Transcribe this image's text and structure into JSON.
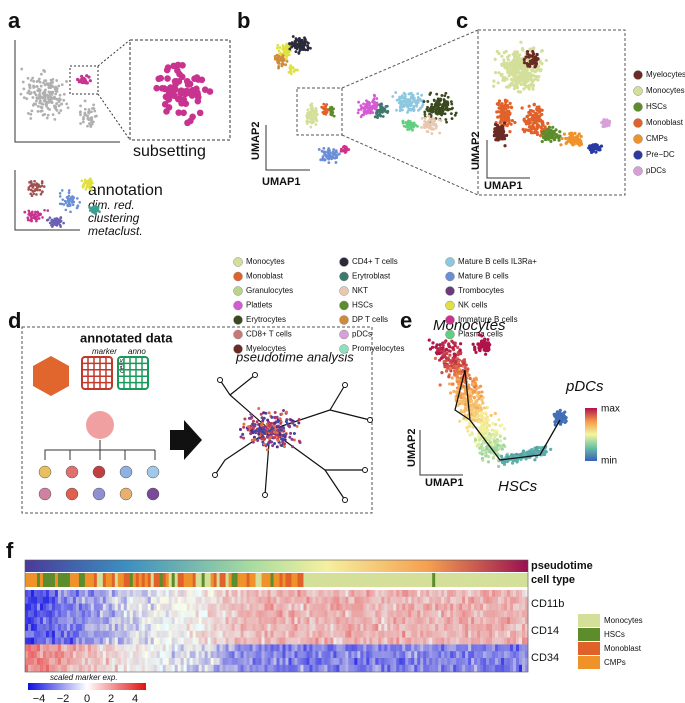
{
  "panel_labels": [
    "a",
    "b",
    "c",
    "d",
    "e",
    "f"
  ],
  "a": {
    "subsetting": "subsetting",
    "annotation": "annotation",
    "items": [
      "dim. red.",
      "clustering",
      "metaclust."
    ]
  },
  "b": {
    "xlabel": "UMAP1",
    "ylabel": "UMAP2",
    "legend": [
      {
        "name": "Monocytes",
        "color": "#d4df9a"
      },
      {
        "name": "Monoblast",
        "color": "#e0622a"
      },
      {
        "name": "Granulocytes",
        "color": "#b9d58c"
      },
      {
        "name": "Platlets",
        "color": "#d65ad6"
      },
      {
        "name": "Erytrocytes",
        "color": "#3b4a1e"
      },
      {
        "name": "CD8+ T cells",
        "color": "#cc7777"
      },
      {
        "name": "Myelocytes",
        "color": "#6b2b24"
      },
      {
        "name": "CD4+ T cells",
        "color": "#2a2a3a"
      },
      {
        "name": "Erytroblast",
        "color": "#3c7a6b"
      },
      {
        "name": "NKT",
        "color": "#e8c8b0"
      },
      {
        "name": "HSCs",
        "color": "#5c8c2c"
      },
      {
        "name": "DP T cells",
        "color": "#d08a3a"
      },
      {
        "name": "pDCs",
        "color": "#d8a0d8"
      },
      {
        "name": "Promyelocytes",
        "color": "#8fe0c0"
      },
      {
        "name": "Mature B cells IL3Ra+",
        "color": "#8ec8e0"
      },
      {
        "name": "Mature B cells",
        "color": "#6a8ed8"
      },
      {
        "name": "Trombocytes",
        "color": "#6a3a7a"
      },
      {
        "name": "NK cells",
        "color": "#e0e040"
      },
      {
        "name": "Immature B cells",
        "color": "#d0308a"
      },
      {
        "name": "Plasma cells",
        "color": "#60d080"
      }
    ]
  },
  "c": {
    "xlabel": "UMAP1",
    "ylabel": "UMAP2",
    "legend": [
      {
        "name": "Myelocytes",
        "color": "#6b2b24"
      },
      {
        "name": "Monocytes",
        "color": "#d4df9a"
      },
      {
        "name": "HSCs",
        "color": "#5c8c2c"
      },
      {
        "name": "Monoblast",
        "color": "#e0622a"
      },
      {
        "name": "CMPs",
        "color": "#f0922a"
      },
      {
        "name": "Pre−DC",
        "color": "#2a3aa0"
      },
      {
        "name": "pDCs",
        "color": "#d8a0d8"
      }
    ]
  },
  "d": {
    "title": "annotated data",
    "marker": "marker",
    "anno": "anno",
    "cells": "cells",
    "analysis": "pseudotime analysis"
  },
  "e": {
    "monocytes": "Monocytes",
    "pdcs": "pDCs",
    "hscs": "HSCs",
    "xlabel": "UMAP1",
    "ylabel": "UMAP2",
    "max": "max",
    "min": "min"
  },
  "f": {
    "rows": [
      "pseudotime",
      "cell type"
    ],
    "markers": [
      "CD11b",
      "CD14",
      "CD34"
    ],
    "legend": [
      {
        "name": "Monocytes",
        "color": "#d4df9a"
      },
      {
        "name": "HSCs",
        "color": "#5c8c2c"
      },
      {
        "name": "Monoblast",
        "color": "#e0622a"
      },
      {
        "name": "CMPs",
        "color": "#f0922a"
      }
    ],
    "scale_title": "scaled marker exp.",
    "scale_ticks": [
      "−4",
      "−2",
      "0",
      "2",
      "4"
    ]
  }
}
